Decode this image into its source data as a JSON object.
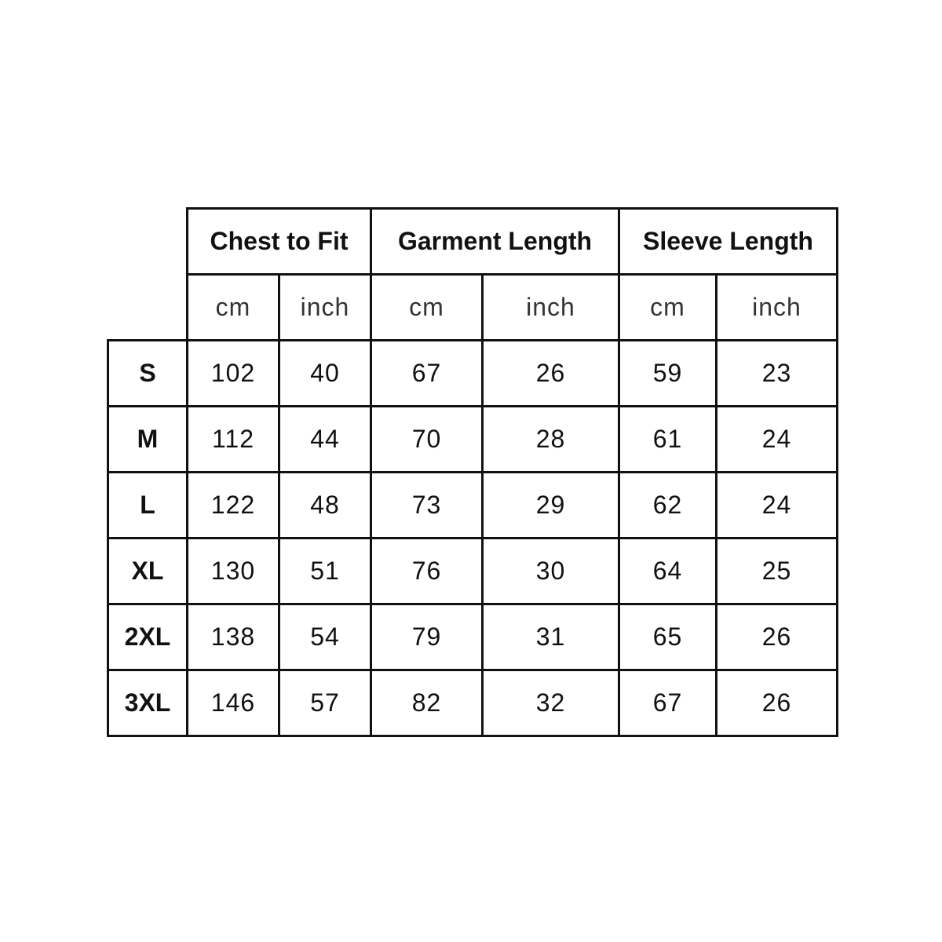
{
  "groups": [
    "Chest to Fit",
    "Garment Length",
    "Sleeve Length"
  ],
  "units": [
    "cm",
    "inch",
    "cm",
    "inch",
    "cm",
    "inch"
  ],
  "rows": [
    {
      "size": "S",
      "values": [
        "102",
        "40",
        "67",
        "26",
        "59",
        "23"
      ]
    },
    {
      "size": "M",
      "values": [
        "112",
        "44",
        "70",
        "28",
        "61",
        "24"
      ]
    },
    {
      "size": "L",
      "values": [
        "122",
        "48",
        "73",
        "29",
        "62",
        "24"
      ]
    },
    {
      "size": "XL",
      "values": [
        "130",
        "51",
        "76",
        "30",
        "64",
        "25"
      ]
    },
    {
      "size": "2XL",
      "values": [
        "138",
        "54",
        "79",
        "31",
        "65",
        "26"
      ]
    },
    {
      "size": "3XL",
      "values": [
        "146",
        "57",
        "82",
        "32",
        "67",
        "26"
      ]
    }
  ]
}
